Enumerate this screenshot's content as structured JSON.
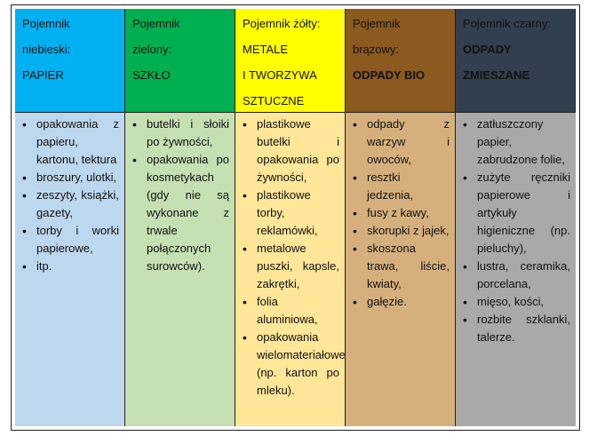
{
  "colors": {
    "blue_head": "#00b0f0",
    "green_head": "#00b050",
    "yellow_head": "#ffff00",
    "brown_head": "#8b5a1e",
    "black_head": "#323f4f",
    "blue_body": "#bdd7ee",
    "green_body": "#c6e0b4",
    "yellow_body": "#ffe699",
    "brown_body": "#d6b07c",
    "black_body": "#a9a9a9"
  },
  "columns": [
    {
      "header": [
        "Pojemnik",
        "niebieski:",
        "PAPIER"
      ],
      "items": [
        "opakowania z papieru, kartonu, tektura",
        "broszury, ulotki,",
        "zeszyty, książki, gazety,",
        "torby i worki papierowe,",
        "itp."
      ]
    },
    {
      "header": [
        "Pojemnik",
        "zielony:",
        "SZKŁO"
      ],
      "items": [
        "butelki i słoiki po żywności,",
        "opakowania po kosmetykach (gdy nie są wykonane z trwale połączonych surowców)."
      ]
    },
    {
      "header": [
        "Pojemnik żółty:",
        "METALE",
        "I TWORZYWA",
        "SZTUCZNE"
      ],
      "items": [
        "plastikowe butelki i opakowania po żywności,",
        "plastikowe torby, reklamówki,",
        "metalowe puszki, kapsle, zakrętki,",
        "folia aluminiowa,",
        "opakowania wielomateriałowe (np. karton po mleku)."
      ]
    },
    {
      "header": [
        "Pojemnik",
        "brązowy:",
        "ODPADY BIO"
      ],
      "items": [
        "odpady z warzyw i owoców,",
        "resztki jedzenia,",
        "fusy z kawy,",
        "skorupki z jajek,",
        "skoszona trawa, liście, kwiaty,",
        "gałęzie."
      ]
    },
    {
      "header": [
        "Pojemnik czarny:",
        "ODPADY",
        "ZMIESZANE"
      ],
      "items": [
        "zatłuszczony papier, zabrudzone folie,",
        "zużyte ręczniki papierowe i artykuły higieniczne (np. pieluchy),",
        "lustra, ceramika, porcelana,",
        "mięso, kości,",
        "rozbite szklanki, talerze."
      ]
    }
  ]
}
